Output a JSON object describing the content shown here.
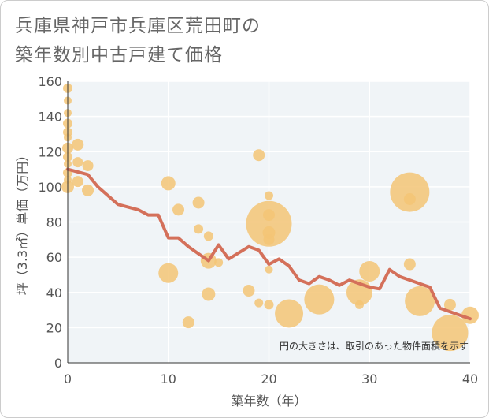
{
  "title_line1": "兵庫県神戸市兵庫区荒田町の",
  "title_line2": "築年数別中古戸建て価格",
  "chart_data": {
    "type": "scatter",
    "xlabel": "築年数（年）",
    "ylabel": "坪（3.3㎡）単価（万円）",
    "xlim": [
      0,
      40
    ],
    "ylim": [
      0,
      160
    ],
    "xticks": [
      0,
      10,
      20,
      30,
      40
    ],
    "yticks": [
      0,
      20,
      40,
      60,
      80,
      100,
      120,
      140,
      160
    ],
    "grid": true,
    "note": "円の大きさは、取引のあった物件面積を示す",
    "colors": {
      "bubble": "#f3c476",
      "line": "#d4705a",
      "plot_bg": "#f0f4f7"
    },
    "bubbles": [
      {
        "x": 0,
        "y": 156,
        "s": 1.2
      },
      {
        "x": 0,
        "y": 149,
        "s": 1.0
      },
      {
        "x": 0,
        "y": 142,
        "s": 1.0
      },
      {
        "x": 0,
        "y": 136,
        "s": 1.2
      },
      {
        "x": 0,
        "y": 131,
        "s": 1.2
      },
      {
        "x": 0,
        "y": 128,
        "s": 1.0
      },
      {
        "x": 0,
        "y": 122,
        "s": 1.4
      },
      {
        "x": 0,
        "y": 117,
        "s": 1.2
      },
      {
        "x": 0,
        "y": 113,
        "s": 1.0
      },
      {
        "x": 0,
        "y": 108,
        "s": 1.2
      },
      {
        "x": 0,
        "y": 104,
        "s": 1.0
      },
      {
        "x": 0,
        "y": 100,
        "s": 1.6
      },
      {
        "x": 1,
        "y": 124,
        "s": 1.5
      },
      {
        "x": 1,
        "y": 114,
        "s": 1.3
      },
      {
        "x": 1,
        "y": 103,
        "s": 1.4
      },
      {
        "x": 2,
        "y": 112,
        "s": 1.4
      },
      {
        "x": 2,
        "y": 98,
        "s": 1.5
      },
      {
        "x": 10,
        "y": 102,
        "s": 1.8
      },
      {
        "x": 10,
        "y": 51,
        "s": 2.5
      },
      {
        "x": 11,
        "y": 87,
        "s": 1.5
      },
      {
        "x": 12,
        "y": 23,
        "s": 1.5
      },
      {
        "x": 13,
        "y": 91,
        "s": 1.5
      },
      {
        "x": 13,
        "y": 76,
        "s": 1.2
      },
      {
        "x": 14,
        "y": 72,
        "s": 1.2
      },
      {
        "x": 14,
        "y": 58,
        "s": 2.0
      },
      {
        "x": 14,
        "y": 39,
        "s": 1.7
      },
      {
        "x": 15,
        "y": 57,
        "s": 1.1
      },
      {
        "x": 18,
        "y": 41,
        "s": 1.5
      },
      {
        "x": 19,
        "y": 118,
        "s": 1.5
      },
      {
        "x": 19,
        "y": 34,
        "s": 1.1
      },
      {
        "x": 20,
        "y": 95,
        "s": 1.1
      },
      {
        "x": 20,
        "y": 84,
        "s": 1.5
      },
      {
        "x": 20,
        "y": 79,
        "s": 5.8
      },
      {
        "x": 20,
        "y": 74,
        "s": 1.6
      },
      {
        "x": 20,
        "y": 70,
        "s": 1.4
      },
      {
        "x": 20,
        "y": 53,
        "s": 1.0
      },
      {
        "x": 20,
        "y": 33,
        "s": 1.2
      },
      {
        "x": 22,
        "y": 28,
        "s": 3.6
      },
      {
        "x": 25,
        "y": 36,
        "s": 3.8
      },
      {
        "x": 29,
        "y": 40,
        "s": 3.3
      },
      {
        "x": 29,
        "y": 33,
        "s": 1.1
      },
      {
        "x": 30,
        "y": 52,
        "s": 2.6
      },
      {
        "x": 34,
        "y": 97,
        "s": 5.0
      },
      {
        "x": 34,
        "y": 93,
        "s": 1.5
      },
      {
        "x": 34,
        "y": 56,
        "s": 1.5
      },
      {
        "x": 35,
        "y": 35,
        "s": 3.8
      },
      {
        "x": 38,
        "y": 33,
        "s": 1.5
      },
      {
        "x": 38,
        "y": 17,
        "s": 4.6
      },
      {
        "x": 40,
        "y": 27,
        "s": 2.2
      }
    ],
    "series": [
      {
        "type": "line",
        "x": [
          0,
          2,
          3,
          5,
          7,
          8,
          9,
          10,
          11,
          12,
          13,
          14,
          15,
          16,
          18,
          19,
          20,
          21,
          22,
          23,
          24,
          25,
          26,
          27,
          28,
          29,
          30,
          31,
          32,
          33,
          34,
          35,
          36,
          37,
          38,
          39,
          40
        ],
        "y": [
          110,
          107,
          100,
          90,
          87,
          84,
          84,
          71,
          71,
          66,
          62,
          58,
          67,
          59,
          66,
          64,
          56,
          59,
          55,
          47,
          45,
          49,
          47,
          44,
          47,
          45,
          43,
          42,
          53,
          49,
          47,
          45,
          43,
          31,
          29,
          27,
          25
        ]
      }
    ]
  }
}
